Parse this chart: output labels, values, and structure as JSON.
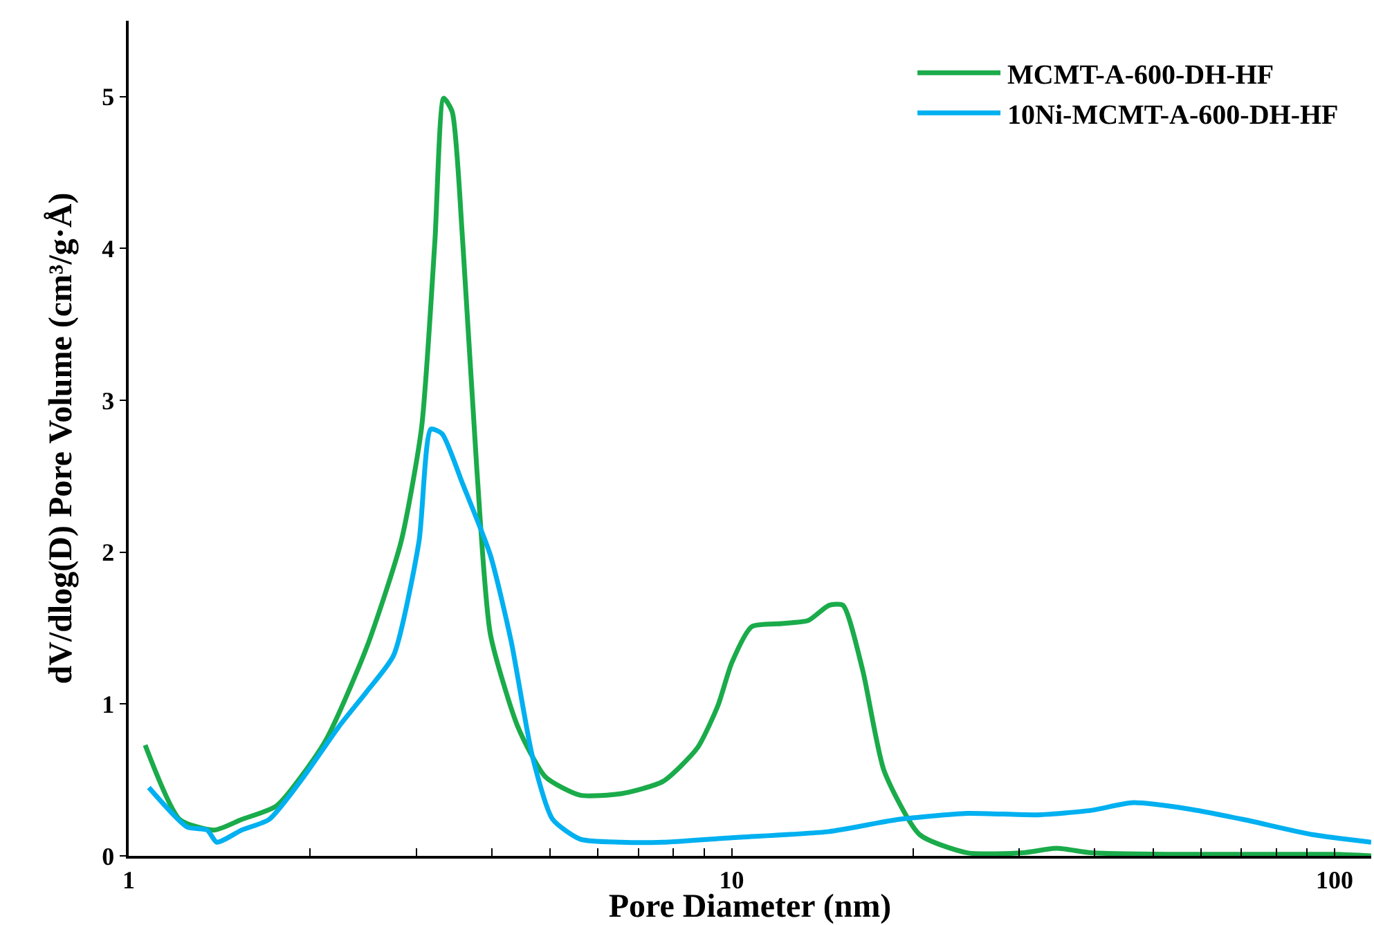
{
  "chart_data": {
    "type": "line",
    "xlabel": "Pore Diameter (nm)",
    "ylabel": "dV/dlog(D) Pore Volume (cm³/g·Å)",
    "log": "x",
    "xlim": [
      1,
      115
    ],
    "xticks": [
      1,
      {
        "value": 2,
        "label": null
      },
      {
        "value": 3,
        "label": null
      },
      {
        "value": 4,
        "label": null
      },
      {
        "value": 5,
        "label": null
      },
      {
        "value": 6,
        "label": null
      },
      {
        "value": 7,
        "label": null
      },
      {
        "value": 8,
        "label": null
      },
      {
        "value": 9,
        "label": null
      },
      10,
      {
        "value": 20,
        "label": null
      },
      {
        "value": 30,
        "label": null
      },
      {
        "value": 40,
        "label": null
      },
      {
        "value": 50,
        "label": null
      },
      {
        "value": 60,
        "label": null
      },
      {
        "value": 70,
        "label": null
      },
      {
        "value": 80,
        "label": null
      },
      {
        "value": 90,
        "label": null
      },
      100
    ],
    "ylim": [
      0,
      5.5
    ],
    "yticks": [
      0,
      1,
      2,
      3,
      4,
      5
    ],
    "legend": "top right",
    "marker": "none",
    "line_style": "solid",
    "series": [
      {
        "name": "MCMT-A-600-DH-HF",
        "color": "#1aab4a",
        "x": [
          1.065,
          1.215,
          1.387,
          1.54,
          1.76,
          2.115,
          2.48,
          2.83,
          3.06,
          3.22,
          3.33,
          3.44,
          3.58,
          3.78,
          3.98,
          4.42,
          4.91,
          5.6,
          6.56,
          7.69,
          8.77,
          9.49,
          10,
          10.8,
          12.1,
          13.4,
          14.5,
          15.3,
          16.5,
          17.9,
          20.5,
          24.6,
          30.4,
          34.6,
          39.5,
          54.2,
          100,
          115
        ],
        "values": [
          0.73,
          0.24,
          0.17,
          0.24,
          0.33,
          0.75,
          1.37,
          2.07,
          2.82,
          4.05,
          4.99,
          4.9,
          4.05,
          2.54,
          1.46,
          0.85,
          0.52,
          0.4,
          0.41,
          0.49,
          0.71,
          0.99,
          1.27,
          1.51,
          1.53,
          1.55,
          1.65,
          1.65,
          1.22,
          0.56,
          0.14,
          0.02,
          0.02,
          0.05,
          0.02,
          0.01,
          0.01,
          0.0
        ]
      },
      {
        "name": "10Ni-MCMT-A-600-DH-HF",
        "color": "#00b0f0",
        "x": [
          1.08,
          1.25,
          1.35,
          1.4,
          1.54,
          1.71,
          1.95,
          2.23,
          2.48,
          2.75,
          3.03,
          3.17,
          3.31,
          3.58,
          3.98,
          4.31,
          4.67,
          5.05,
          5.61,
          6.56,
          7.69,
          10,
          14.5,
          18.9,
          24.6,
          32.1,
          39.5,
          46.3,
          57.1,
          70.5,
          91.9,
          115
        ],
        "values": [
          0.45,
          0.19,
          0.17,
          0.09,
          0.17,
          0.24,
          0.52,
          0.85,
          1.08,
          1.32,
          2.07,
          2.81,
          2.78,
          2.45,
          1.98,
          1.41,
          0.66,
          0.24,
          0.11,
          0.09,
          0.09,
          0.12,
          0.16,
          0.24,
          0.28,
          0.27,
          0.3,
          0.35,
          0.31,
          0.24,
          0.14,
          0.09
        ]
      }
    ]
  }
}
